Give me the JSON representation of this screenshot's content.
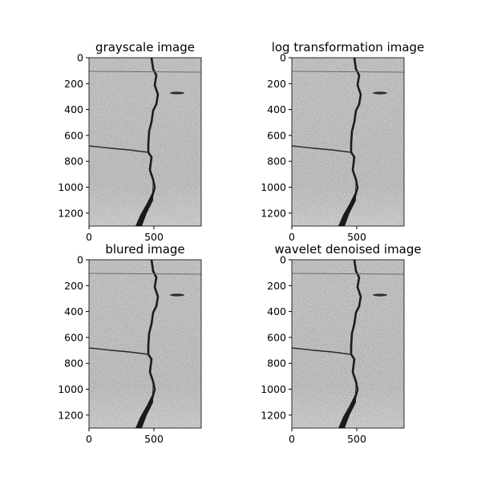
{
  "figure": {
    "panels": [
      {
        "title": "grayscale image",
        "xticks": [
          "0",
          "500"
        ],
        "yticks": [
          "0",
          "200",
          "400",
          "600",
          "800",
          "1000",
          "1200"
        ]
      },
      {
        "title": "log transformation image",
        "xticks": [
          "0",
          "500"
        ],
        "yticks": [
          "0",
          "200",
          "400",
          "600",
          "800",
          "1000",
          "1200"
        ]
      },
      {
        "title": "blured image",
        "xticks": [
          "0",
          "500"
        ],
        "yticks": [
          "0",
          "200",
          "400",
          "600",
          "800",
          "1000",
          "1200"
        ]
      },
      {
        "title": "wavelet denoised image",
        "xticks": [
          "0",
          "500"
        ],
        "yticks": [
          "0",
          "200",
          "400",
          "600",
          "800",
          "1000",
          "1200"
        ]
      }
    ]
  }
}
